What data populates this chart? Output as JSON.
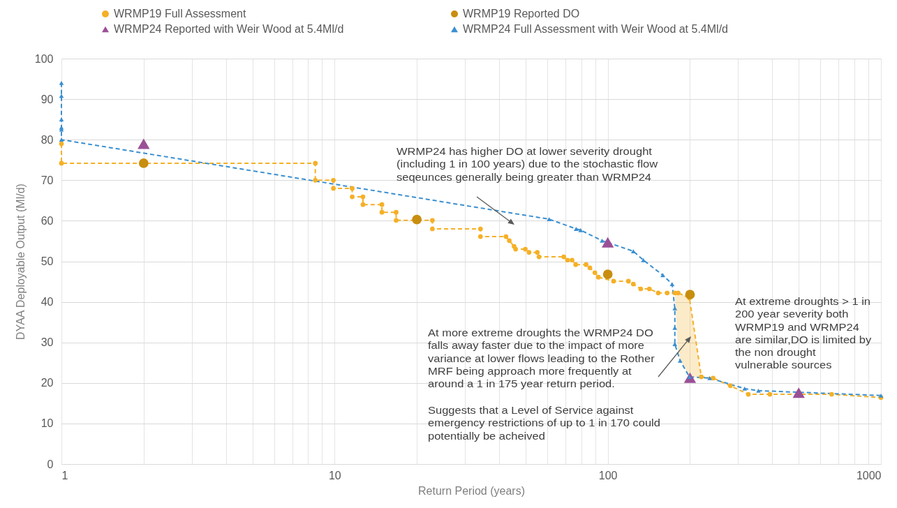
{
  "chart_data": {
    "type": "line",
    "xlabel": "Return Period (years)",
    "ylabel": "DYAA Deployable Output (Ml/d)",
    "log": "x",
    "grid": true,
    "legend": "top",
    "xlim": [
      1,
      1000
    ],
    "ylim": [
      0,
      100
    ],
    "xticks": [
      1,
      {
        "value": 2,
        "label": null
      },
      {
        "value": 3,
        "label": null
      },
      {
        "value": 4,
        "label": null
      },
      {
        "value": 5,
        "label": null
      },
      {
        "value": 6,
        "label": null
      },
      {
        "value": 7,
        "label": null
      },
      {
        "value": 8,
        "label": null
      },
      {
        "value": 9,
        "label": null
      },
      10,
      {
        "value": 20,
        "label": null
      },
      {
        "value": 30,
        "label": null
      },
      {
        "value": 40,
        "label": null
      },
      {
        "value": 50,
        "label": null
      },
      {
        "value": 60,
        "label": null
      },
      {
        "value": 70,
        "label": null
      },
      {
        "value": 80,
        "label": null
      },
      {
        "value": 90,
        "label": null
      },
      100,
      {
        "value": 200,
        "label": null
      },
      {
        "value": 300,
        "label": null
      },
      {
        "value": 400,
        "label": null
      },
      {
        "value": 500,
        "label": null
      },
      {
        "value": 600,
        "label": null
      },
      {
        "value": 700,
        "label": null
      },
      {
        "value": 800,
        "label": null
      },
      {
        "value": 900,
        "label": null
      },
      1000
    ],
    "yticks": [
      0,
      10,
      20,
      30,
      40,
      50,
      60,
      70,
      80,
      90,
      100
    ],
    "series": [
      {
        "name": "WRMP19 Full Assessment",
        "color": "#f5b026",
        "marker": "circle",
        "line_style": "dashed",
        "x": [
          1,
          1,
          8.5,
          8.5,
          9.9,
          9.9,
          11.6,
          11.6,
          12.7,
          12.7,
          14.9,
          14.9,
          16.8,
          16.8,
          22.8,
          22.8,
          34.2,
          34.2,
          42.4,
          43.6,
          45.4,
          46,
          49.9,
          51.5,
          55.2,
          56,
          69,
          71.2,
          74,
          76.3,
          83.3,
          86,
          89.7,
          92.4,
          105,
          119,
          124,
          132,
          142,
          153,
          165,
          176,
          181,
          199,
          220,
          243,
          281,
          327,
          392,
          660,
          1000
        ],
        "values": [
          79,
          74.2,
          74.2,
          70,
          70,
          68,
          68,
          65.9,
          65.9,
          64,
          64,
          62.1,
          62.1,
          60.1,
          60.1,
          58,
          58,
          56.1,
          56.1,
          55.1,
          53.7,
          53,
          53,
          52.2,
          52.2,
          51.1,
          51.1,
          50.3,
          50.3,
          49.2,
          49.2,
          48.4,
          47.2,
          46.1,
          45.1,
          45.1,
          44.4,
          43.2,
          43.2,
          42.2,
          42.2,
          42.2,
          42.2,
          41,
          21.5,
          21.2,
          19.3,
          17.2,
          17.2,
          17.2,
          16.4
        ],
        "upper": [
          null,
          null,
          null,
          null,
          null,
          null,
          null,
          null,
          null,
          null,
          null,
          null,
          null,
          null,
          null,
          null,
          null,
          null,
          null,
          null,
          null,
          null,
          null,
          null,
          null,
          null,
          null,
          null,
          null,
          null,
          null,
          null,
          null,
          null,
          null,
          null,
          null,
          null,
          null,
          null,
          null,
          42.2,
          42.2,
          41,
          21.5,
          null,
          null,
          null,
          null,
          null,
          null
        ],
        "lower": [
          null,
          null,
          null,
          null,
          null,
          null,
          null,
          null,
          null,
          null,
          null,
          null,
          null,
          null,
          null,
          null,
          null,
          null,
          null,
          null,
          null,
          null,
          null,
          null,
          null,
          null,
          null,
          null,
          null,
          null,
          null,
          null,
          null,
          null,
          null,
          null,
          null,
          null,
          null,
          null,
          null,
          42.2,
          27,
          21.5,
          21.5,
          null,
          null,
          null,
          null,
          null,
          null
        ]
      },
      {
        "name": "WRMP19 Reported DO",
        "type": "scatter",
        "color": "#c88e0f",
        "marker": "circle",
        "x": [
          2,
          20,
          100,
          200
        ],
        "values": [
          74.2,
          60.3,
          46.8,
          41.8
        ]
      },
      {
        "name": "WRMP24 Reported with Weir Wood at 5.4Ml/d",
        "type": "scatter",
        "color": "#9b4f96",
        "marker": "triangle",
        "x": [
          2,
          100,
          200,
          500
        ],
        "values": [
          79,
          54.7,
          21.3,
          17.6
        ]
      },
      {
        "name": "WRMP24 Full Assessment with Weir Wood at 5.4Ml/d",
        "type": "line",
        "color": "#3a8fd0",
        "marker": "triangle",
        "line_style": "dashed",
        "x": [
          1,
          1,
          1,
          1,
          1,
          1,
          61,
          76.6,
          79.5,
          95.3,
          124,
          135,
          159,
          172,
          176,
          176,
          176,
          184,
          199,
          236,
          317,
          356,
          1000
        ],
        "values": [
          94,
          90.8,
          85,
          83,
          82.5,
          80,
          60.4,
          58,
          57.7,
          55.1,
          52.5,
          50.3,
          46.6,
          44.4,
          38.4,
          33.6,
          29.6,
          25.5,
          21.5,
          21.2,
          18.6,
          18.1,
          16.9
        ]
      }
    ],
    "annotations": [
      "WRMP24 has higher DO at lower severity drought (including 1 in 100 years) due to the stochastic flow seqeunces generally being greater than WRMP24",
      "At more extreme droughts the WRMP24 DO falls away faster due to the impact of more variance at lower flows leading to the Rother MRF being approach more frequently at around a 1 in 175 year return period.",
      "Suggests that a Level of Service against emergency restrictions of up to 1 in 170 could potentially be acheived",
      "At extreme droughts > 1 in 200 year severity both WRMP19 and WRMP24 are similar,DO is limited by the non drought vulnerable sources"
    ]
  }
}
